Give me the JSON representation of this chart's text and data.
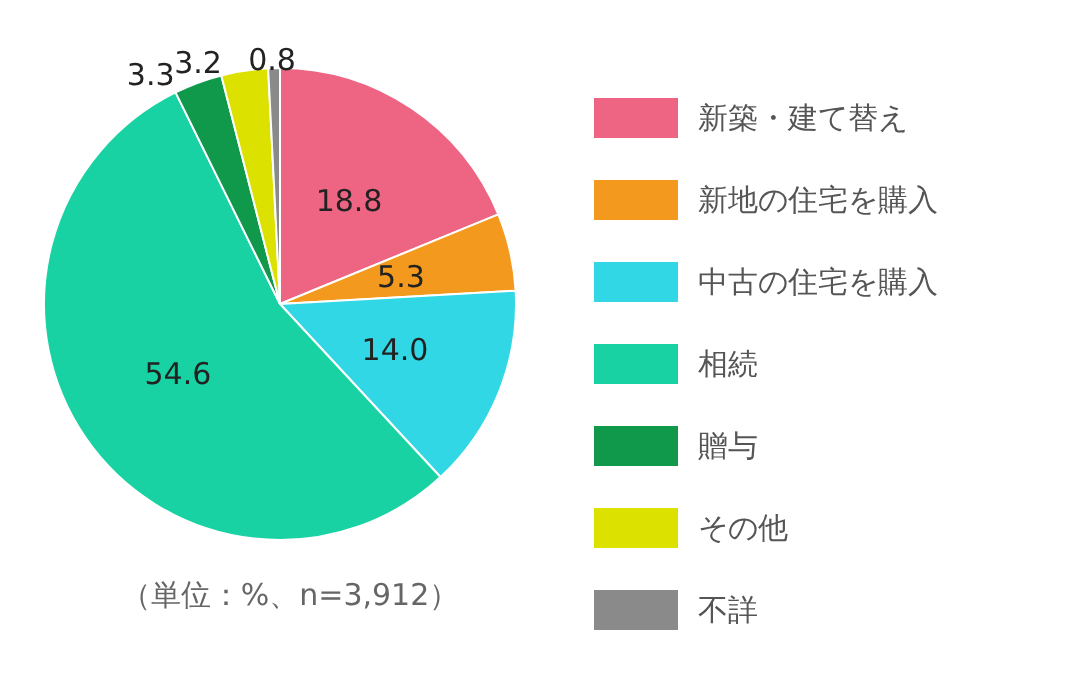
{
  "chart_data": {
    "type": "pie",
    "categories": [
      "新築・建て替え",
      "新地の住宅を購入",
      "中古の住宅を購入",
      "相続",
      "贈与",
      "その他",
      "不詳"
    ],
    "values": [
      18.8,
      5.3,
      14.0,
      54.6,
      3.3,
      3.2,
      0.8
    ],
    "colors": [
      "#ee6583",
      "#f39a1e",
      "#31d7e4",
      "#19d2a3",
      "#10994a",
      "#dce100",
      "#8a8a8a"
    ],
    "value_labels": [
      "18.8",
      "5.3",
      "14.0",
      "54.6",
      "3.3",
      "3.2",
      "0.8"
    ],
    "legend": "right",
    "annotations": [
      "（単位：%、n=3,912）"
    ]
  }
}
